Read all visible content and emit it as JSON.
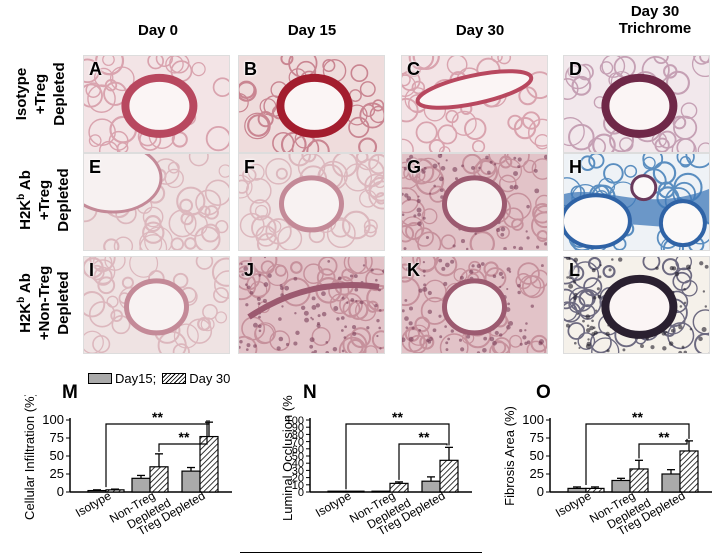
{
  "columns": [
    "Day 0",
    "Day 15",
    "Day 30",
    "Day 30",
    "Trichrome"
  ],
  "rows": [
    {
      "line1": "Isotype",
      "line2": "+Treg",
      "line3": "Depleted"
    },
    {
      "line1": "H2K",
      "sup": "b",
      "line1b": " Ab",
      "line2": "+Treg",
      "line3": "Depleted"
    },
    {
      "line1": "H2K",
      "sup": "b",
      "line1b": " Ab",
      "line2": "+Non-Treg",
      "line3": "Depleted"
    }
  ],
  "panels": [
    {
      "label": "A",
      "stain": "he",
      "lumen": "round"
    },
    {
      "label": "B",
      "stain": "he-dark",
      "lumen": "round"
    },
    {
      "label": "C",
      "stain": "he",
      "lumen": "long"
    },
    {
      "label": "D",
      "stain": "trichrome-purple",
      "lumen": "round"
    },
    {
      "label": "E",
      "stain": "he-pale",
      "lumen": "corner"
    },
    {
      "label": "F",
      "stain": "he-pale",
      "lumen": "oval"
    },
    {
      "label": "G",
      "stain": "he-dense",
      "lumen": "oval"
    },
    {
      "label": "H",
      "stain": "trichrome-blue",
      "lumen": "double"
    },
    {
      "label": "I",
      "stain": "he-pale",
      "lumen": "oval"
    },
    {
      "label": "J",
      "stain": "he-dense",
      "lumen": "slit"
    },
    {
      "label": "K",
      "stain": "he-dense",
      "lumen": "oval"
    },
    {
      "label": "L",
      "stain": "trichrome-dark",
      "lumen": "round"
    }
  ],
  "legend": {
    "day15": "Day15;",
    "day30": "Day 30"
  },
  "chart_data": [
    {
      "letter": "M",
      "type": "bar",
      "categories": [
        "Isotype",
        "Non-Treg Depleted",
        "Treg Depleted"
      ],
      "series": [
        {
          "name": "Day15",
          "values": [
            2,
            19,
            29
          ],
          "errors": [
            1,
            4,
            5
          ]
        },
        {
          "name": "Day 30",
          "values": [
            3,
            35,
            77
          ],
          "errors": [
            1,
            18,
            20
          ]
        }
      ],
      "ylabel": "Cellular Infiltration (%)",
      "ylim": [
        0,
        100
      ],
      "yticks": [
        "0",
        "25",
        "50",
        "75",
        "100"
      ],
      "significance": [
        "**",
        "**"
      ]
    },
    {
      "letter": "N",
      "type": "bar",
      "categories": [
        "Isotype",
        "Non-Treg Depleted",
        "Treg Depleted"
      ],
      "series": [
        {
          "name": "Day15",
          "values": [
            0,
            0,
            15
          ],
          "errors": [
            0,
            0,
            6
          ]
        },
        {
          "name": "Day 30",
          "values": [
            0,
            12,
            44
          ],
          "errors": [
            0,
            2,
            18
          ]
        }
      ],
      "ylabel": "Luminal Occlusion (%)",
      "ylim": [
        0,
        100
      ],
      "yticks": [
        "0",
        "10",
        "20",
        "30",
        "40",
        "50",
        "60",
        "70",
        "80",
        "90",
        "100"
      ],
      "significance": [
        "**",
        "**"
      ]
    },
    {
      "letter": "O",
      "type": "bar",
      "categories": [
        "Isotype",
        "Non-Treg Depleted",
        "Treg Depleted"
      ],
      "series": [
        {
          "name": "Day15",
          "values": [
            5,
            16,
            25
          ],
          "errors": [
            2,
            3,
            6
          ]
        },
        {
          "name": "Day 30",
          "values": [
            5,
            32,
            57
          ],
          "errors": [
            2,
            12,
            14
          ]
        }
      ],
      "ylabel": "Fibrosis Area (%)",
      "ylim": [
        0,
        100
      ],
      "yticks": [
        "0",
        "25",
        "50",
        "75",
        "100"
      ],
      "significance": [
        "**",
        "**"
      ]
    }
  ]
}
